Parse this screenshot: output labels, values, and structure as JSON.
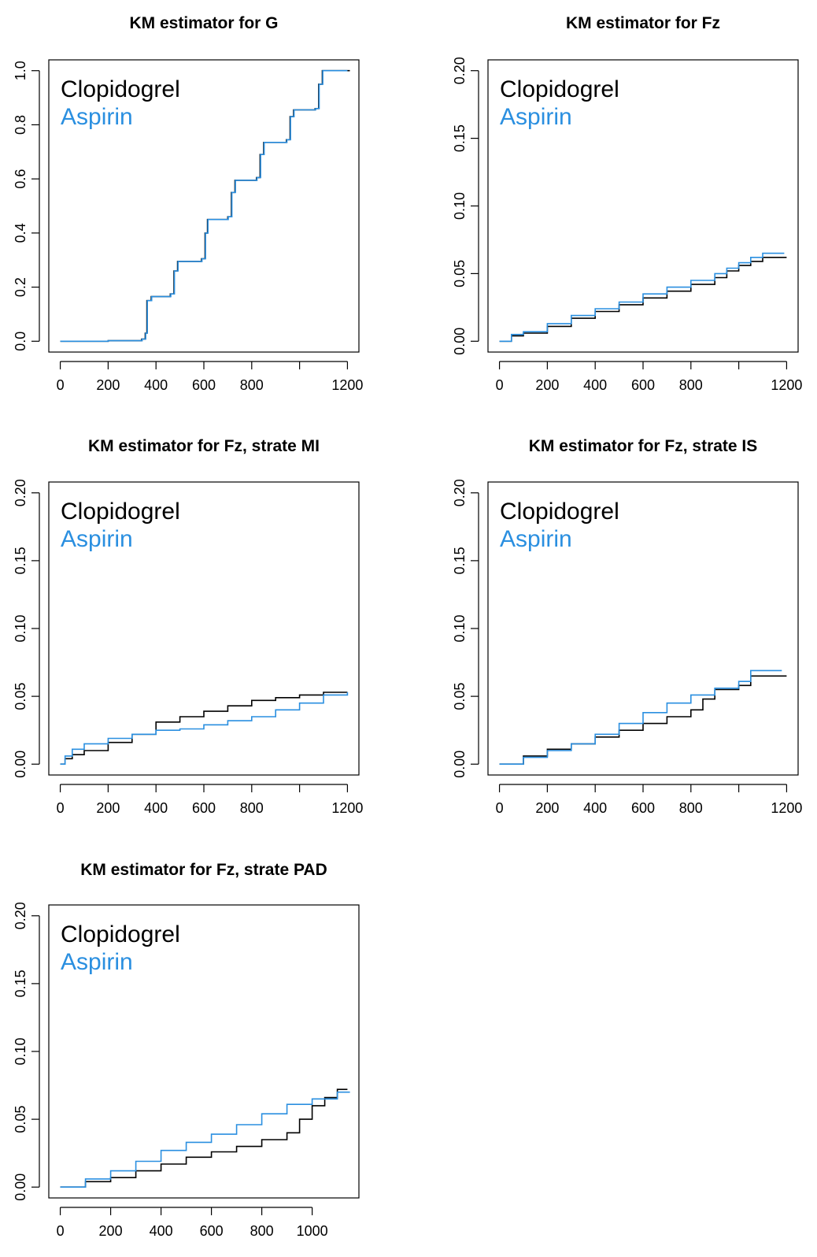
{
  "chart_data": [
    {
      "type": "line",
      "title": "KM estimator for G",
      "xlabel": "",
      "ylabel": "",
      "xlim": [
        0,
        1200
      ],
      "ylim": [
        0,
        1.0
      ],
      "xticks": [
        0,
        200,
        400,
        600,
        800,
        1000,
        1200
      ],
      "xtick_labels": [
        "0",
        "200",
        "400",
        "600",
        "800",
        "",
        "1200"
      ],
      "yticks": [
        0,
        0.2,
        0.4,
        0.6,
        0.8,
        1.0
      ],
      "ytick_labels": [
        "0.0",
        "0.2",
        "0.4",
        "0.6",
        "0.8",
        "1.0"
      ],
      "legend": {
        "position": "top-left",
        "frame": false
      },
      "grid": false,
      "series": [
        {
          "name": "Clopidogrel",
          "color": "#000000",
          "x": [
            0,
            200,
            340,
            355,
            362,
            380,
            460,
            475,
            490,
            590,
            605,
            615,
            700,
            715,
            730,
            820,
            835,
            850,
            945,
            960,
            975,
            1065,
            1080,
            1095,
            1210
          ],
          "y": [
            0,
            0.002,
            0.008,
            0.03,
            0.15,
            0.165,
            0.175,
            0.26,
            0.295,
            0.305,
            0.4,
            0.45,
            0.46,
            0.55,
            0.595,
            0.605,
            0.69,
            0.735,
            0.745,
            0.83,
            0.855,
            0.86,
            0.95,
            1.0,
            1.0
          ]
        },
        {
          "name": "Aspirin",
          "color": "#2A8FE0",
          "x": [
            0,
            200,
            342,
            357,
            364,
            382,
            462,
            477,
            492,
            592,
            607,
            617,
            702,
            717,
            732,
            822,
            837,
            852,
            947,
            962,
            977,
            1067,
            1082,
            1097,
            1200
          ],
          "y": [
            0,
            0.002,
            0.008,
            0.03,
            0.15,
            0.165,
            0.175,
            0.26,
            0.295,
            0.305,
            0.4,
            0.45,
            0.46,
            0.55,
            0.595,
            0.605,
            0.69,
            0.735,
            0.745,
            0.83,
            0.855,
            0.86,
            0.95,
            1.0,
            1.0
          ]
        }
      ]
    },
    {
      "type": "line",
      "title": "KM estimator for Fz",
      "xlabel": "",
      "ylabel": "",
      "xlim": [
        0,
        1200
      ],
      "ylim": [
        0,
        0.2
      ],
      "xticks": [
        0,
        200,
        400,
        600,
        800,
        1000,
        1200
      ],
      "xtick_labels": [
        "0",
        "200",
        "400",
        "600",
        "800",
        "",
        "1200"
      ],
      "yticks": [
        0,
        0.05,
        0.1,
        0.15,
        0.2
      ],
      "ytick_labels": [
        "0.00",
        "0.05",
        "0.10",
        "0.15",
        "0.20"
      ],
      "legend": {
        "position": "top-left",
        "frame": false
      },
      "grid": false,
      "series": [
        {
          "name": "Clopidogrel",
          "color": "#000000",
          "x": [
            0,
            50,
            100,
            200,
            300,
            400,
            500,
            600,
            700,
            800,
            900,
            950,
            1000,
            1050,
            1100,
            1200
          ],
          "y": [
            0,
            0.004,
            0.006,
            0.011,
            0.017,
            0.022,
            0.027,
            0.032,
            0.037,
            0.042,
            0.047,
            0.052,
            0.056,
            0.059,
            0.062,
            0.062
          ]
        },
        {
          "name": "Aspirin",
          "color": "#2A8FE0",
          "x": [
            0,
            50,
            100,
            200,
            300,
            400,
            500,
            600,
            700,
            800,
            900,
            950,
            1000,
            1050,
            1100,
            1190
          ],
          "y": [
            0,
            0.005,
            0.007,
            0.013,
            0.019,
            0.024,
            0.029,
            0.035,
            0.04,
            0.045,
            0.05,
            0.054,
            0.058,
            0.062,
            0.065,
            0.065
          ]
        }
      ]
    },
    {
      "type": "line",
      "title": "KM estimator for Fz, strate MI",
      "xlabel": "",
      "ylabel": "",
      "xlim": [
        0,
        1200
      ],
      "ylim": [
        0,
        0.2
      ],
      "xticks": [
        0,
        200,
        400,
        600,
        800,
        1000,
        1200
      ],
      "xtick_labels": [
        "0",
        "200",
        "400",
        "600",
        "800",
        "",
        "1200"
      ],
      "yticks": [
        0,
        0.05,
        0.1,
        0.15,
        0.2
      ],
      "ytick_labels": [
        "0.00",
        "0.05",
        "0.10",
        "0.15",
        "0.20"
      ],
      "legend": {
        "position": "top-left",
        "frame": false
      },
      "grid": false,
      "series": [
        {
          "name": "Clopidogrel",
          "color": "#000000",
          "x": [
            0,
            20,
            50,
            100,
            200,
            300,
            400,
            500,
            600,
            700,
            800,
            900,
            1000,
            1100,
            1200
          ],
          "y": [
            0,
            0.004,
            0.007,
            0.01,
            0.016,
            0.022,
            0.031,
            0.035,
            0.039,
            0.043,
            0.047,
            0.049,
            0.051,
            0.053,
            0.053
          ]
        },
        {
          "name": "Aspirin",
          "color": "#2A8FE0",
          "x": [
            0,
            20,
            50,
            100,
            200,
            300,
            400,
            500,
            600,
            700,
            800,
            900,
            1000,
            1100,
            1200
          ],
          "y": [
            0,
            0.006,
            0.011,
            0.015,
            0.019,
            0.022,
            0.025,
            0.026,
            0.029,
            0.032,
            0.035,
            0.04,
            0.045,
            0.051,
            0.053
          ]
        }
      ]
    },
    {
      "type": "line",
      "title": "KM estimator for Fz, strate IS",
      "xlabel": "",
      "ylabel": "",
      "xlim": [
        0,
        1200
      ],
      "ylim": [
        0,
        0.2
      ],
      "xticks": [
        0,
        200,
        400,
        600,
        800,
        1000,
        1200
      ],
      "xtick_labels": [
        "0",
        "200",
        "400",
        "600",
        "800",
        "",
        "1200"
      ],
      "yticks": [
        0,
        0.05,
        0.1,
        0.15,
        0.2
      ],
      "ytick_labels": [
        "0.00",
        "0.05",
        "0.10",
        "0.15",
        "0.20"
      ],
      "legend": {
        "position": "top-left",
        "frame": false
      },
      "grid": false,
      "series": [
        {
          "name": "Clopidogrel",
          "color": "#000000",
          "x": [
            0,
            100,
            200,
            300,
            400,
            500,
            600,
            700,
            800,
            850,
            900,
            1000,
            1050,
            1200
          ],
          "y": [
            0,
            0.006,
            0.011,
            0.015,
            0.02,
            0.025,
            0.03,
            0.035,
            0.04,
            0.048,
            0.055,
            0.058,
            0.065,
            0.065
          ]
        },
        {
          "name": "Aspirin",
          "color": "#2A8FE0",
          "x": [
            0,
            100,
            200,
            300,
            400,
            500,
            600,
            700,
            800,
            900,
            1000,
            1050,
            1180
          ],
          "y": [
            0,
            0.005,
            0.01,
            0.015,
            0.022,
            0.03,
            0.038,
            0.045,
            0.051,
            0.056,
            0.061,
            0.069,
            0.069
          ]
        }
      ]
    },
    {
      "type": "line",
      "title": "KM estimator for Fz, strate PAD",
      "xlabel": "",
      "ylabel": "",
      "xlim": [
        0,
        1140
      ],
      "ylim": [
        0,
        0.2
      ],
      "xticks": [
        0,
        200,
        400,
        600,
        800,
        1000
      ],
      "xtick_labels": [
        "0",
        "200",
        "400",
        "600",
        "800",
        "1000"
      ],
      "yticks": [
        0,
        0.05,
        0.1,
        0.15,
        0.2
      ],
      "ytick_labels": [
        "0.00",
        "0.05",
        "0.10",
        "0.15",
        "0.20"
      ],
      "legend": {
        "position": "top-left",
        "frame": false
      },
      "grid": false,
      "series": [
        {
          "name": "Clopidogrel",
          "color": "#000000",
          "x": [
            0,
            100,
            200,
            300,
            400,
            500,
            600,
            700,
            800,
            900,
            950,
            1000,
            1050,
            1100,
            1140
          ],
          "y": [
            0,
            0.004,
            0.007,
            0.012,
            0.017,
            0.022,
            0.026,
            0.03,
            0.035,
            0.04,
            0.05,
            0.06,
            0.066,
            0.072,
            0.072
          ]
        },
        {
          "name": "Aspirin",
          "color": "#2A8FE0",
          "x": [
            0,
            100,
            200,
            300,
            400,
            500,
            600,
            700,
            800,
            900,
            1000,
            1100,
            1150
          ],
          "y": [
            0,
            0.006,
            0.012,
            0.019,
            0.027,
            0.033,
            0.039,
            0.046,
            0.054,
            0.061,
            0.065,
            0.07,
            0.07
          ]
        }
      ]
    }
  ]
}
